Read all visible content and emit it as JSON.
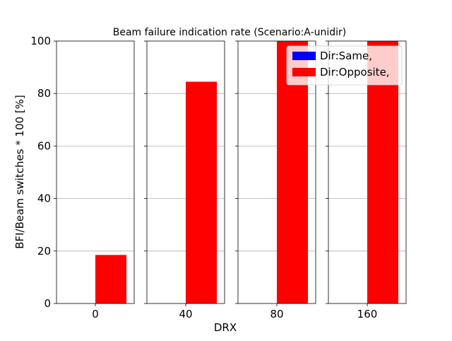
{
  "chart_data": {
    "type": "bar",
    "title": "Beam failure indication rate (Scenario:A-unidir)",
    "xlabel": "DRX",
    "ylabel": "BFI/Beam switches * 100 [%]",
    "ylim": [
      0,
      100
    ],
    "yticks": [
      0,
      20,
      40,
      60,
      80,
      100
    ],
    "grid": "y",
    "categories": [
      "0",
      "40",
      "80",
      "160"
    ],
    "series": [
      {
        "name": "Dir:Same,",
        "color": "#0000ff",
        "values": [
          0,
          0,
          0,
          0
        ]
      },
      {
        "name": "Dir:Opposite,",
        "color": "#ff0000",
        "values": [
          18.5,
          84.5,
          100,
          100
        ]
      }
    ],
    "legend": {
      "position": "top-right"
    }
  }
}
